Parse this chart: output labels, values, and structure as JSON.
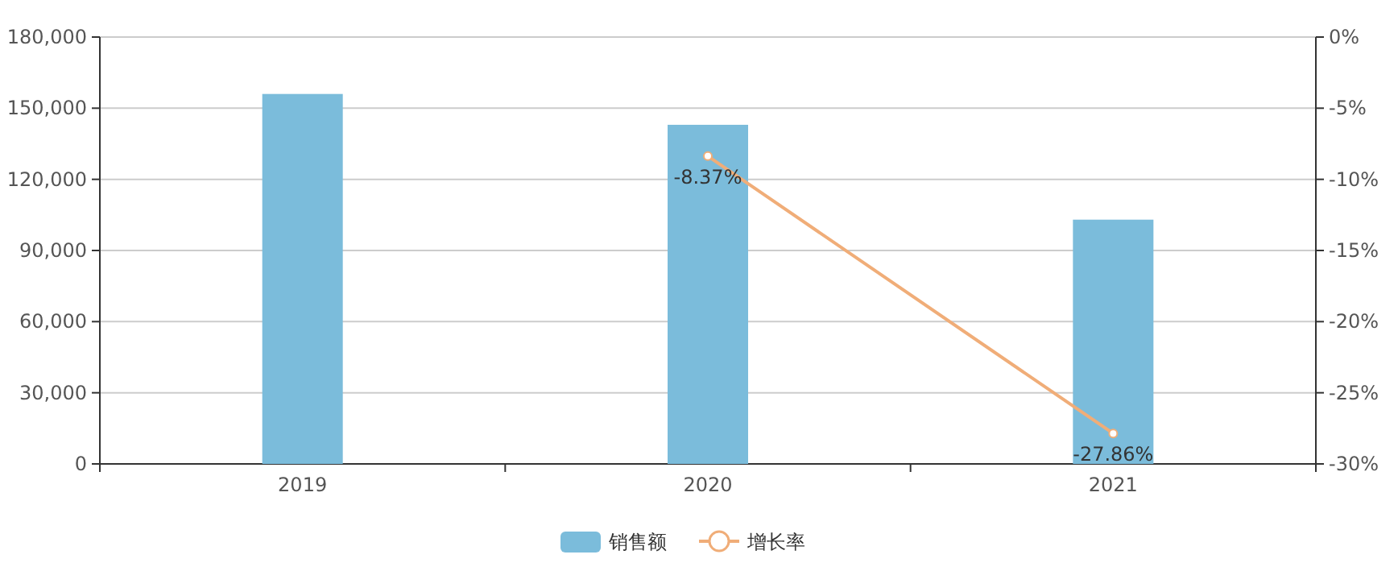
{
  "chart_data": {
    "type": "bar",
    "categories": [
      "2019",
      "2020",
      "2021"
    ],
    "series": [
      {
        "name": "销售额",
        "color": "#7bbcdb",
        "values": [
          156000,
          143000,
          103000
        ]
      },
      {
        "name": "增长率",
        "type": "line",
        "axis": "y2",
        "color": "#f0ad78",
        "marker": "circle",
        "values": [
          null,
          -8.37,
          -27.86
        ],
        "value_labels": [
          null,
          "-8.37%",
          "-27.86%"
        ]
      }
    ],
    "ylim": [
      0,
      180000
    ],
    "yticks": [
      0,
      {
        "value": 30000,
        "label": "30,000"
      },
      {
        "value": 60000,
        "label": "60,000"
      },
      {
        "value": 90000,
        "label": "90,000"
      },
      {
        "value": 120000,
        "label": "120,000"
      },
      {
        "value": 150000,
        "label": "150,000"
      },
      {
        "value": 180000,
        "label": "180,000"
      }
    ],
    "y2lim": [
      -30,
      0
    ],
    "y2ticks": [
      {
        "value": -30,
        "label": "-30%"
      },
      {
        "value": -25,
        "label": "-25%"
      },
      {
        "value": -20,
        "label": "-20%"
      },
      {
        "value": -15,
        "label": "-15%"
      },
      {
        "value": -10,
        "label": "-10%"
      },
      {
        "value": -5,
        "label": "-5%"
      },
      {
        "value": 0,
        "label": "0%"
      }
    ],
    "grid": "y",
    "legend": "bottom"
  }
}
